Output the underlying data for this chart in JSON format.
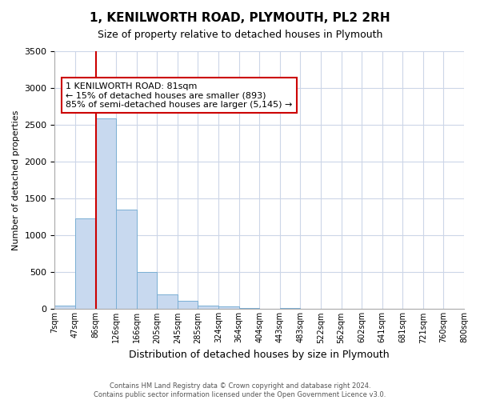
{
  "title": "1, KENILWORTH ROAD, PLYMOUTH, PL2 2RH",
  "subtitle": "Size of property relative to detached houses in Plymouth",
  "xlabel": "Distribution of detached houses by size in Plymouth",
  "ylabel": "Number of detached properties",
  "bin_edges": [
    "7sqm",
    "47sqm",
    "86sqm",
    "126sqm",
    "166sqm",
    "205sqm",
    "245sqm",
    "285sqm",
    "324sqm",
    "364sqm",
    "404sqm",
    "443sqm",
    "483sqm",
    "522sqm",
    "562sqm",
    "602sqm",
    "641sqm",
    "681sqm",
    "721sqm",
    "760sqm",
    "800sqm"
  ],
  "bar_heights": [
    50,
    1230,
    2590,
    1350,
    500,
    200,
    110,
    50,
    40,
    20,
    0,
    20,
    0,
    0,
    0,
    0,
    0,
    0,
    0,
    0
  ],
  "bar_color": "#c8d9ef",
  "bar_edge_color": "#7aafd4",
  "ylim": [
    0,
    3500
  ],
  "yticks": [
    0,
    500,
    1000,
    1500,
    2000,
    2500,
    3000,
    3500
  ],
  "property_line_x": 2,
  "property_line_color": "#cc0000",
  "annotation_title": "1 KENILWORTH ROAD: 81sqm",
  "annotation_line1": "← 15% of detached houses are smaller (893)",
  "annotation_line2": "85% of semi-detached houses are larger (5,145) →",
  "annotation_box_color": "#ffffff",
  "annotation_box_edge_color": "#cc0000",
  "footer_line1": "Contains HM Land Registry data © Crown copyright and database right 2024.",
  "footer_line2": "Contains public sector information licensed under the Open Government Licence v3.0.",
  "background_color": "#ffffff",
  "grid_color": "#ccd6e8"
}
